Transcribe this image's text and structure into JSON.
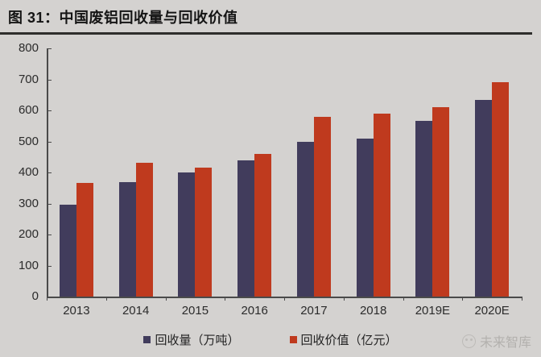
{
  "title": "图 31：中国废铝回收量与回收价值",
  "watermark": {
    "text": "未来智库"
  },
  "chart_data": {
    "type": "bar",
    "title": "中国废铝回收量与回收价值",
    "categories": [
      "2013",
      "2014",
      "2015",
      "2016",
      "2017",
      "2018",
      "2019E",
      "2020E"
    ],
    "series": [
      {
        "name": "回收量（万吨）",
        "color": "#413c5c",
        "values": [
          295,
          370,
          400,
          440,
          500,
          510,
          565,
          635
        ]
      },
      {
        "name": "回收价值（亿元）",
        "color": "#bf3a1e",
        "values": [
          365,
          430,
          415,
          460,
          580,
          590,
          610,
          690
        ]
      }
    ],
    "ylim": [
      0,
      800
    ],
    "yticks": [
      0,
      100,
      200,
      300,
      400,
      500,
      600,
      700,
      800
    ],
    "xlabel": "",
    "ylabel": "",
    "grid": false,
    "legend_position": "bottom"
  },
  "colors": {
    "background": "#d4d2d0",
    "axis": "#4a4a4a",
    "text": "#2b2b2b",
    "series1": "#413c5c",
    "series2": "#bf3a1e"
  }
}
